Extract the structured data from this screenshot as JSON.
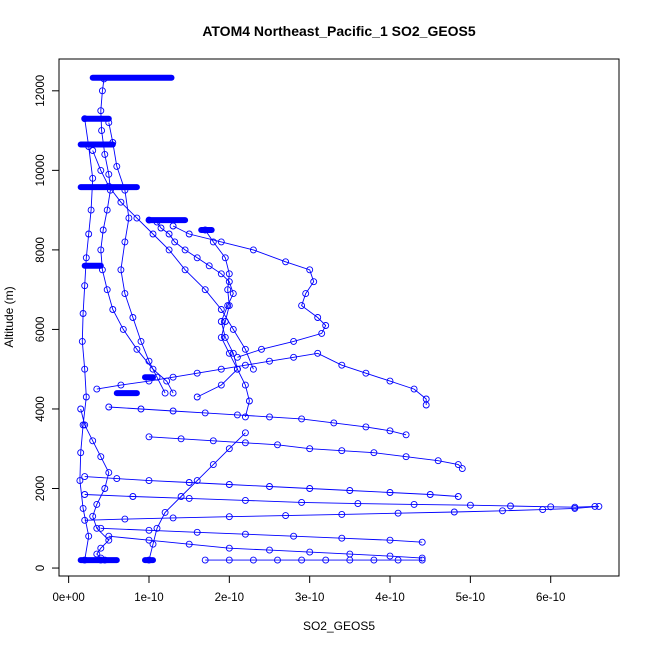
{
  "chart_data": {
    "type": "scatter",
    "title": "ATOM4 Northeast_Pacific_1 SO2_GEOS5",
    "xlabel": "SO2_GEOS5",
    "ylabel": "Altitude (m)",
    "xlim": [
      -1.2e-11,
      6.85e-10
    ],
    "ylim": [
      -200,
      12800
    ],
    "x_ticks": [
      {
        "value": 0,
        "label": "0e+00"
      },
      {
        "value": 1e-10,
        "label": "1e-10"
      },
      {
        "value": 2e-10,
        "label": "2e-10"
      },
      {
        "value": 3e-10,
        "label": "3e-10"
      },
      {
        "value": 4e-10,
        "label": "4e-10"
      },
      {
        "value": 5e-10,
        "label": "5e-10"
      },
      {
        "value": 6e-10,
        "label": "6e-10"
      }
    ],
    "y_ticks": [
      {
        "value": 0,
        "label": "0"
      },
      {
        "value": 2000,
        "label": "2000"
      },
      {
        "value": 4000,
        "label": "4000"
      },
      {
        "value": 6000,
        "label": "6000"
      },
      {
        "value": 8000,
        "label": "8000"
      },
      {
        "value": 10000,
        "label": "10000"
      },
      {
        "value": 12000,
        "label": "12000"
      }
    ],
    "grid": false,
    "marker": "open-circle",
    "color": "#0000ff",
    "series": [
      {
        "x": [
          4.4e-11,
          4.2e-11,
          4e-11,
          4.1e-11,
          4.5e-11,
          5e-11,
          5.2e-11,
          4.8e-11,
          4.3e-11,
          4e-11,
          4.2e-11,
          4.8e-11,
          5.5e-11,
          6.8e-11,
          8.5e-11,
          1.05e-10,
          1.22e-10,
          1.3e-10
        ],
        "y": [
          12300,
          12000,
          11500,
          11000,
          10400,
          9900,
          9500,
          9000,
          8500,
          8000,
          7500,
          7000,
          6500,
          6000,
          5500,
          5000,
          4700,
          4400
        ]
      },
      {
        "x": [
          1e-10,
          1.1e-10,
          1.15e-10,
          1.25e-10,
          1.32e-10,
          1.45e-10,
          1.6e-10,
          1.75e-10,
          1.9e-10,
          2e-10,
          2.05e-10,
          1.98e-10,
          1.9e-10,
          1.95e-10,
          2.05e-10,
          2.1e-10,
          1.9e-10,
          1.6e-10
        ],
        "y": [
          8750,
          8700,
          8550,
          8400,
          8200,
          8000,
          7800,
          7600,
          7400,
          7200,
          6900,
          6600,
          6200,
          5800,
          5400,
          5000,
          4600,
          4300
        ]
      },
      {
        "x": [
          1.3e-10,
          1.5e-10,
          1.9e-10,
          2.3e-10,
          2.7e-10,
          3e-10,
          3.05e-10,
          2.95e-10,
          2.9e-10,
          3.1e-10,
          3.2e-10,
          3.15e-10,
          2.8e-10,
          2.4e-10,
          2.1e-10
        ],
        "y": [
          8600,
          8400,
          8200,
          8000,
          7700,
          7500,
          7200,
          6900,
          6600,
          6300,
          6100,
          5900,
          5700,
          5500,
          5300
        ]
      },
      {
        "x": [
          1.7e-10,
          1.8e-10,
          1.95e-10,
          2e-10,
          1.98e-10,
          2e-10,
          1.95e-10,
          1.9e-10,
          2e-10,
          2.1e-10,
          2.2e-10,
          2.25e-10,
          2.2e-10
        ],
        "y": [
          8500,
          8200,
          7800,
          7400,
          7000,
          6600,
          6200,
          5800,
          5400,
          5000,
          4600,
          4200,
          3800
        ]
      },
      {
        "x": [
          5e-11,
          5.5e-11,
          6e-11,
          7e-11,
          7.5e-11,
          7e-11,
          6.5e-11,
          7e-11,
          8e-11,
          9e-11,
          1e-10,
          1.1e-10,
          1.2e-10
        ],
        "y": [
          11200,
          10700,
          10100,
          9500,
          8800,
          8200,
          7500,
          6900,
          6300,
          5700,
          5200,
          4800,
          4400
        ]
      },
      {
        "x": [
          2e-11,
          2.5e-11,
          3e-11,
          2.8e-11,
          2.5e-11,
          2.2e-11,
          2e-11,
          1.8e-11,
          1.7e-11,
          2e-11,
          2.2e-11,
          1.8e-11,
          1.5e-11,
          1.4e-11,
          1.8e-11,
          2.5e-11,
          2e-11
        ],
        "y": [
          11300,
          10600,
          9800,
          9000,
          8400,
          7800,
          7100,
          6400,
          5700,
          5000,
          4300,
          3600,
          2900,
          2200,
          1500,
          800,
          200
        ]
      },
      {
        "x": [
          3e-11,
          4e-11,
          5e-11,
          6.5e-11,
          8.5e-11,
          1.05e-10,
          1.25e-10,
          1.45e-10,
          1.7e-10,
          1.9e-10,
          2.05e-10,
          2.2e-10,
          2.3e-10
        ],
        "y": [
          10500,
          10000,
          9600,
          9200,
          8800,
          8400,
          8000,
          7500,
          7000,
          6500,
          6000,
          5500,
          5000
        ]
      },
      {
        "x": [
          3.5e-11,
          6.5e-11,
          1e-10,
          1.3e-10,
          1.6e-10,
          1.9e-10,
          2.2e-10,
          2.5e-10,
          2.8e-10,
          3.1e-10,
          3.4e-10,
          3.7e-10,
          4e-10,
          4.3e-10,
          4.45e-10,
          4.45e-10
        ],
        "y": [
          4500,
          4600,
          4700,
          4800,
          4900,
          5000,
          5100,
          5200,
          5300,
          5400,
          5100,
          4900,
          4700,
          4500,
          4250,
          4100
        ]
      },
      {
        "x": [
          5e-11,
          9e-11,
          1.3e-10,
          1.7e-10,
          2.1e-10,
          2.5e-10,
          2.9e-10,
          3.3e-10,
          3.7e-10,
          4e-10,
          4.2e-10
        ],
        "y": [
          4050,
          4000,
          3950,
          3900,
          3850,
          3800,
          3750,
          3650,
          3550,
          3450,
          3350
        ]
      },
      {
        "x": [
          1e-10,
          1.4e-10,
          1.8e-10,
          2.2e-10,
          2.6e-10,
          3e-10,
          3.4e-10,
          3.8e-10,
          4.2e-10,
          4.6e-10,
          4.85e-10,
          4.9e-10
        ],
        "y": [
          3300,
          3250,
          3200,
          3150,
          3100,
          3000,
          2950,
          2900,
          2800,
          2700,
          2600,
          2500
        ]
      },
      {
        "x": [
          2e-11,
          6e-11,
          1e-10,
          1.5e-10,
          2e-10,
          2.5e-10,
          3e-10,
          3.5e-10,
          4e-10,
          4.5e-10,
          4.85e-10
        ],
        "y": [
          2300,
          2250,
          2200,
          2150,
          2100,
          2050,
          2000,
          1950,
          1900,
          1850,
          1800
        ]
      },
      {
        "x": [
          2e-11,
          8e-11,
          1.5e-10,
          2.2e-10,
          2.9e-10,
          3.6e-10,
          4.3e-10,
          5e-10,
          5.5e-10,
          6e-10,
          6.3e-10,
          6.55e-10
        ],
        "y": [
          1850,
          1800,
          1750,
          1700,
          1650,
          1620,
          1600,
          1580,
          1560,
          1540,
          1530,
          1550
        ]
      },
      {
        "x": [
          2e-11,
          7e-11,
          1.3e-10,
          2e-10,
          2.7e-10,
          3.4e-10,
          4.1e-10,
          4.8e-10,
          5.4e-10,
          5.9e-10,
          6.3e-10,
          6.6e-10
        ],
        "y": [
          1200,
          1230,
          1260,
          1290,
          1320,
          1350,
          1380,
          1410,
          1440,
          1470,
          1500,
          1550
        ]
      },
      {
        "x": [
          4e-11,
          1e-10,
          1.6e-10,
          2.2e-10,
          2.8e-10,
          3.4e-10,
          4e-10,
          4.4e-10
        ],
        "y": [
          1000,
          950,
          900,
          850,
          800,
          750,
          700,
          650
        ]
      },
      {
        "x": [
          5e-11,
          1e-10,
          1.5e-10,
          2e-10,
          2.5e-10,
          3e-10,
          3.5e-10,
          4e-10,
          4.4e-10
        ],
        "y": [
          800,
          700,
          600,
          500,
          450,
          400,
          350,
          300,
          250
        ]
      },
      {
        "x": [
          1.7e-10,
          2e-10,
          2.3e-10,
          2.6e-10,
          2.9e-10,
          3.2e-10,
          3.5e-10,
          3.8e-10,
          4.1e-10,
          4.4e-10
        ],
        "y": [
          200,
          200,
          200,
          200,
          200,
          200,
          200,
          200,
          200,
          200
        ]
      },
      {
        "x": [
          1.5e-11,
          2e-11,
          3e-11,
          4e-11,
          5e-11,
          4.5e-11,
          3.5e-11,
          3e-11,
          3.5e-11,
          5e-11,
          4e-11,
          3.5e-11,
          4e-11,
          4.5e-11,
          4e-11
        ],
        "y": [
          4000,
          3600,
          3200,
          2800,
          2400,
          2000,
          1600,
          1300,
          1000,
          700,
          500,
          350,
          250,
          200,
          200
        ]
      },
      {
        "x": [
          1e-10,
          1.05e-10,
          1.1e-10,
          1.2e-10,
          1.4e-10,
          1.6e-10,
          1.8e-10,
          2e-10,
          2.2e-10
        ],
        "y": [
          200,
          600,
          1000,
          1400,
          1800,
          2200,
          2600,
          3000,
          3400
        ]
      }
    ],
    "plateaus": [
      {
        "x": [
          3e-11,
          1.28e-10
        ],
        "y": 12330
      },
      {
        "x": [
          2e-11,
          5e-11
        ],
        "y": 11300
      },
      {
        "x": [
          1.5e-11,
          5.5e-11
        ],
        "y": 10650
      },
      {
        "x": [
          1.5e-11,
          8.5e-11
        ],
        "y": 9580
      },
      {
        "x": [
          1e-10,
          1.45e-10
        ],
        "y": 8750
      },
      {
        "x": [
          1.65e-10,
          1.78e-10
        ],
        "y": 8500
      },
      {
        "x": [
          2e-11,
          4e-11
        ],
        "y": 7600
      },
      {
        "x": [
          6e-11,
          8.5e-11
        ],
        "y": 4400
      },
      {
        "x": [
          9.5e-11,
          1.05e-10
        ],
        "y": 4800
      },
      {
        "x": [
          1.5e-11,
          6e-11
        ],
        "y": 200
      },
      {
        "x": [
          9.5e-11,
          1.05e-10
        ],
        "y": 200
      }
    ]
  }
}
